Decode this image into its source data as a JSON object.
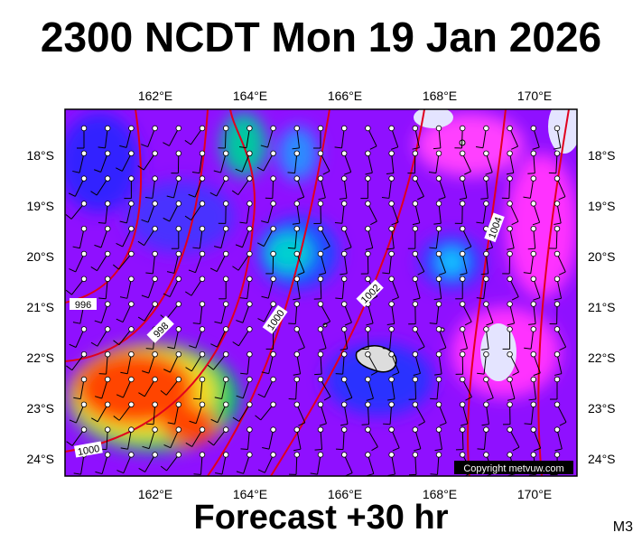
{
  "title": "2300 NCDT Mon 19 Jan 2026",
  "footer": "Forecast +30 hr",
  "model_code": "M3",
  "copyright": "Copyright metvuw.com",
  "longitude_labels": [
    "162°E",
    "164°E",
    "166°E",
    "168°E",
    "170°E"
  ],
  "latitude_labels": [
    "18°S",
    "19°S",
    "20°S",
    "21°S",
    "22°S",
    "23°S",
    "24°S"
  ],
  "isobar_labels": [
    "996",
    "998",
    "1000",
    "1002",
    "1004",
    "1000"
  ],
  "colors": {
    "isobar": "#e0001e",
    "low_wind": "#6a00ff",
    "high_wind": "#ff4500",
    "land": "#dddddd"
  }
}
